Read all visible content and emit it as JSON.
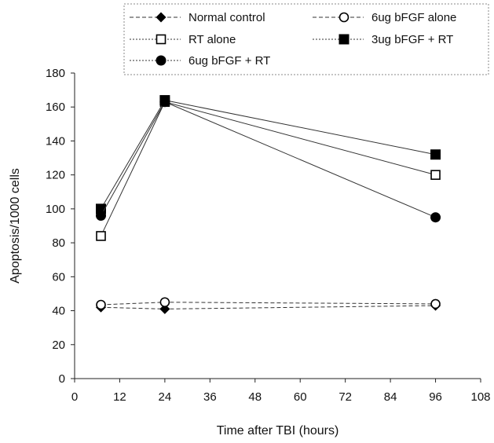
{
  "chart_data": {
    "type": "line",
    "title": "",
    "xlabel": "Time after TBI (hours)",
    "ylabel": "Apoptosis/1000 cells",
    "xlim": [
      0,
      108
    ],
    "ylim": [
      0,
      180
    ],
    "x_ticks": [
      0,
      12,
      24,
      36,
      48,
      60,
      72,
      84,
      96,
      108
    ],
    "y_ticks": [
      0,
      20,
      40,
      60,
      80,
      100,
      120,
      140,
      160,
      180
    ],
    "grid": false,
    "legend_position": "top",
    "x": [
      7,
      24,
      96
    ],
    "series": [
      {
        "name": "Normal control",
        "marker": "filled-diamond",
        "line_style": "dashed",
        "color": "#000000",
        "values": [
          42,
          41,
          43
        ]
      },
      {
        "name": "6ug bFGF alone",
        "marker": "open-circle",
        "line_style": "dashed",
        "color": "#000000",
        "values": [
          43.5,
          45,
          44
        ]
      },
      {
        "name": "RT alone",
        "marker": "open-square",
        "line_style": "solid",
        "color": "#000000",
        "values": [
          84,
          163,
          120
        ]
      },
      {
        "name": "3ug bFGF + RT",
        "marker": "filled-square",
        "line_style": "solid",
        "color": "#000000",
        "values": [
          100,
          164,
          132
        ]
      },
      {
        "name": "6ug bFGF + RT",
        "marker": "filled-circle",
        "line_style": "solid",
        "color": "#000000",
        "values": [
          96,
          163,
          95
        ]
      }
    ]
  }
}
